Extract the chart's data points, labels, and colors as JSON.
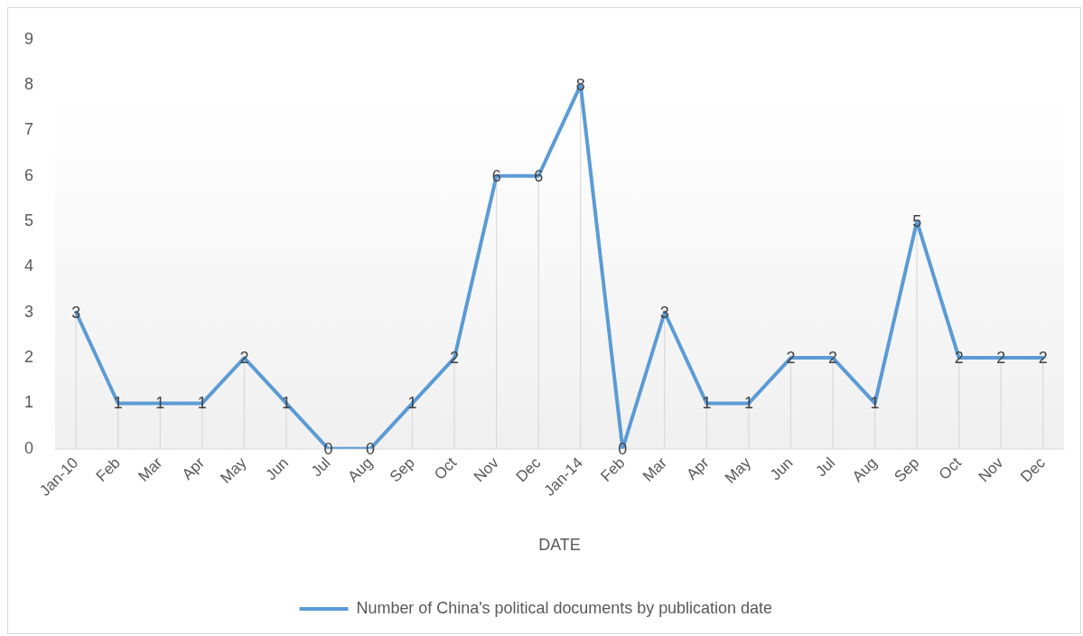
{
  "chart_data": {
    "type": "line",
    "xlabel": "DATE",
    "categories": [
      "Jan-10",
      "Feb",
      "Mar",
      "Apr",
      "May",
      "Jun",
      "Jul",
      "Aug",
      "Sep",
      "Oct",
      "Nov",
      "Dec",
      "Jan-14",
      "Feb",
      "Mar",
      "Apr",
      "May",
      "Jun",
      "Jul",
      "Aug",
      "Sep",
      "Oct",
      "Nov",
      "Dec"
    ],
    "series": [
      {
        "name": "Number of China's political documents by publication date",
        "color": "#5b9bd5",
        "values": [
          3,
          1,
          1,
          1,
          2,
          1,
          0,
          0,
          1,
          2,
          6,
          6,
          8,
          0,
          3,
          1,
          1,
          2,
          2,
          1,
          5,
          2,
          2,
          2
        ]
      }
    ],
    "ylim": [
      0,
      9
    ],
    "yticks": [
      0,
      1,
      2,
      3,
      4,
      5,
      6,
      7,
      8,
      9
    ],
    "data_labels": true,
    "legend": "bottom",
    "marker": "none",
    "line_style": "solid"
  }
}
